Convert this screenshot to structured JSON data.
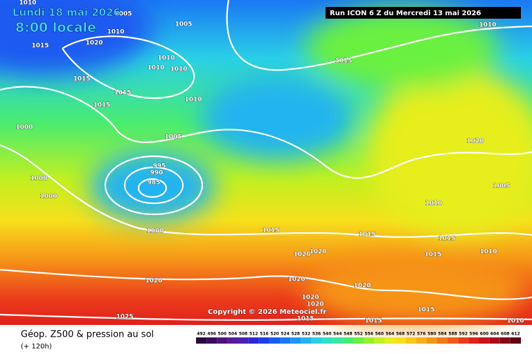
{
  "header": {
    "date": "Lundi 18 mai 2026",
    "time": "8:00 locale",
    "run": "Run ICON 6 Z du Mercredi 13 mai 2026"
  },
  "map": {
    "isobar_labels": [
      "1010",
      "1005",
      "1005",
      "1010",
      "1015",
      "1020",
      "1010",
      "1010",
      "1010",
      "1015",
      "1010",
      "1015",
      "1015",
      "1015",
      "1010",
      "1000",
      "1005",
      "995",
      "990",
      "985",
      "1000",
      "1000",
      "1020",
      "1005",
      "1010",
      "1015",
      "1015",
      "1000",
      "1015",
      "1010",
      "1015",
      "1020",
      "1020",
      "1020",
      "1020",
      "1020",
      "1020",
      "1020",
      "1025",
      "1015",
      "1015",
      "1015",
      "1010"
    ],
    "copyright": "Copyright © 2026 Meteociel.fr"
  },
  "footer": {
    "title": "Géop. Z500 & pression au sol",
    "lead": "(+ 120h)"
  },
  "legend": {
    "labels": [
      492,
      496,
      500,
      504,
      508,
      512,
      516,
      520,
      524,
      528,
      532,
      536,
      540,
      544,
      548,
      552,
      556,
      560,
      564,
      568,
      572,
      576,
      580,
      584,
      588,
      592,
      596,
      600,
      604,
      608,
      612
    ],
    "colors": [
      "#2a0a3a",
      "#3c0a5a",
      "#50127a",
      "#5a1a96",
      "#4a20b4",
      "#2a2ad2",
      "#1a40e6",
      "#1a5af0",
      "#1a78f4",
      "#1a96f4",
      "#22b4f0",
      "#2ad0e6",
      "#30e0c8",
      "#3ae8a0",
      "#4aec6e",
      "#6af040",
      "#96f028",
      "#c0f020",
      "#e6ee1e",
      "#f6e01c",
      "#f8c81a",
      "#f8ae18",
      "#f69418",
      "#f47818",
      "#f05c18",
      "#ea3c1a",
      "#e0201c",
      "#c8141c",
      "#a80e1a",
      "#86081a",
      "#600414"
    ]
  }
}
